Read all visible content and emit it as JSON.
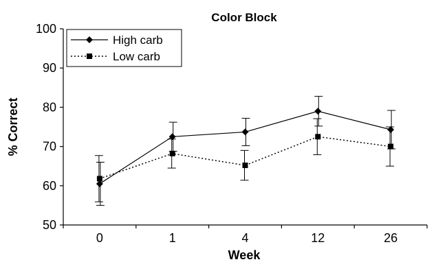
{
  "chart_data": {
    "type": "line",
    "title": "Color Block",
    "xlabel": "Week",
    "ylabel": "% Correct",
    "categories": [
      "0",
      "1",
      "4",
      "12",
      "26"
    ],
    "ylim": [
      50,
      100
    ],
    "yticks": [
      50,
      60,
      70,
      80,
      90,
      100
    ],
    "grid": false,
    "legend_position": "top-left",
    "series": [
      {
        "name": "High carb",
        "values": [
          60.5,
          72.5,
          73.7,
          79.0,
          74.3
        ],
        "error": [
          5.5,
          3.7,
          3.5,
          3.8,
          4.9
        ],
        "marker": "diamond",
        "line_style": "solid",
        "color": "#000000"
      },
      {
        "name": "Low carb",
        "values": [
          61.8,
          68.2,
          65.2,
          72.5,
          70.0
        ],
        "error": [
          5.9,
          3.7,
          3.8,
          4.6,
          5.0
        ],
        "marker": "square",
        "line_style": "dotted",
        "color": "#000000"
      }
    ]
  }
}
